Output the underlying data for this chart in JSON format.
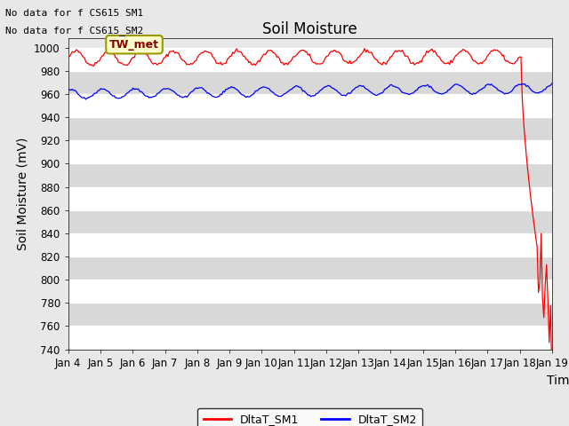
{
  "title": "Soil Moisture",
  "ylabel": "Soil Moisture (mV)",
  "xlabel": "Time",
  "ylim": [
    740,
    1008
  ],
  "yticks": [
    740,
    760,
    780,
    800,
    820,
    840,
    860,
    880,
    900,
    920,
    940,
    960,
    980,
    1000
  ],
  "xtick_labels": [
    "Jan 4",
    "Jan 5",
    "Jan 6",
    "Jan 7",
    "Jan 8",
    "Jan 9",
    "Jan 10",
    "Jan 11",
    "Jan 12",
    "Jan 13",
    "Jan 14",
    "Jan 15",
    "Jan 16",
    "Jan 17",
    "Jan 18",
    "Jan 19"
  ],
  "background_color": "#e8e8e8",
  "plot_bg_color": "#e8e8e8",
  "line1_color": "red",
  "line2_color": "blue",
  "line1_label": "DltaT_SM1",
  "line2_label": "DltaT_SM2",
  "note1": "No data for f CS615 SM1",
  "note2": "No data for f CS615_SM2",
  "annotation": "TW_met",
  "title_fontsize": 12,
  "axis_fontsize": 10,
  "tick_fontsize": 8.5,
  "grid_color": "#ffffff",
  "grid_linewidth": 1.0,
  "alt_band_color": "#d8d8d8"
}
